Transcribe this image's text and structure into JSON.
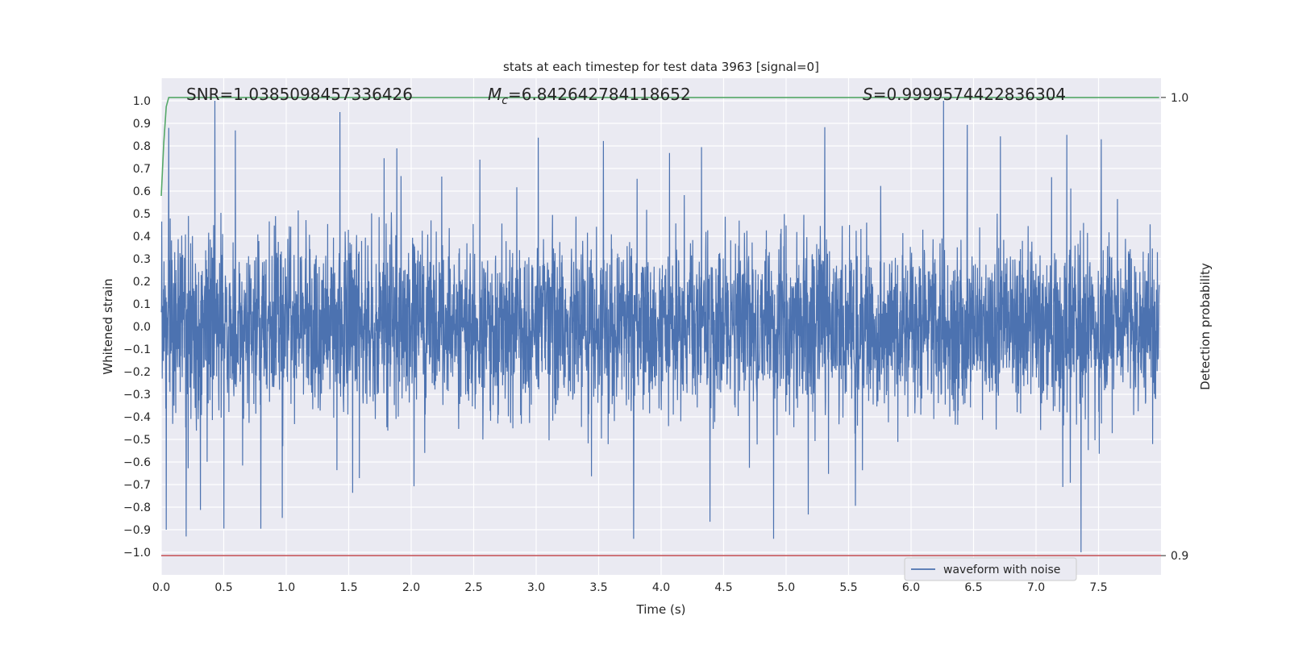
{
  "chart_data": {
    "type": "line",
    "title": "stats at each timestep for test data 3963 [signal=0]",
    "xlabel": "Time (s)",
    "ylabel": "Whitened strain",
    "y2label": "Detection probability",
    "xlim": [
      0.0,
      8.0
    ],
    "ylim": [
      -1.1,
      1.1
    ],
    "y2lim": [
      0.8958,
      1.0042
    ],
    "x_ticks": [
      "0.0",
      "0.5",
      "1.0",
      "1.5",
      "2.0",
      "2.5",
      "3.0",
      "3.5",
      "4.0",
      "4.5",
      "5.0",
      "5.5",
      "6.0",
      "6.5",
      "7.0",
      "7.5"
    ],
    "y_ticks": [
      "1.0",
      "0.9",
      "0.8",
      "0.7",
      "0.6",
      "0.5",
      "0.4",
      "0.3",
      "0.2",
      "0.1",
      "0.0",
      "−0.1",
      "−0.2",
      "−0.3",
      "−0.4",
      "−0.5",
      "−0.6",
      "−0.7",
      "−0.8",
      "−0.9",
      "−1.0"
    ],
    "y2_ticks": [
      "1.0",
      "0.9"
    ],
    "annotations": {
      "snr": "SNR=1.0385098457336426",
      "mc_symbol": "M",
      "mc_sub": "c",
      "mc_value": "=6.842642784118652",
      "s_symbol": "S",
      "s_value": "=0.9999574422836304"
    },
    "grid": true,
    "legend": {
      "placement": "lower-right",
      "entries": [
        "waveform with noise"
      ]
    },
    "series": [
      {
        "name": "waveform with noise",
        "axis": "left",
        "color": "#4c72b0",
        "sampling": "whitened noise, ~0.0 to 8.0 s, amplitude mostly within ±0.5 with peaks near ±1.0",
        "notable_peaks": [
          [
            0.43,
            1.0
          ],
          [
            6.26,
            1.0
          ],
          [
            7.36,
            -1.0
          ],
          [
            0.2,
            -0.93
          ],
          [
            3.78,
            -0.94
          ],
          [
            4.9,
            -0.94
          ],
          [
            1.43,
            0.95
          ],
          [
            0.06,
            0.88
          ],
          [
            0.04,
            -0.9
          ]
        ]
      },
      {
        "axis": "right",
        "color": "#55a868",
        "x": [
          0.0,
          0.02,
          0.04,
          0.06,
          8.0
        ],
        "y": [
          0.9785,
          0.99,
          0.998,
          1.0,
          1.0
        ]
      },
      {
        "axis": "right",
        "color": "#c44e52",
        "x": [
          0.0,
          8.0
        ],
        "y": [
          0.9,
          0.9
        ]
      }
    ],
    "colors": {
      "plot_bg": "#eaeaf2",
      "grid": "#ffffff",
      "wave": "#4c72b0",
      "prob": "#55a868",
      "threshold": "#c44e52"
    }
  }
}
